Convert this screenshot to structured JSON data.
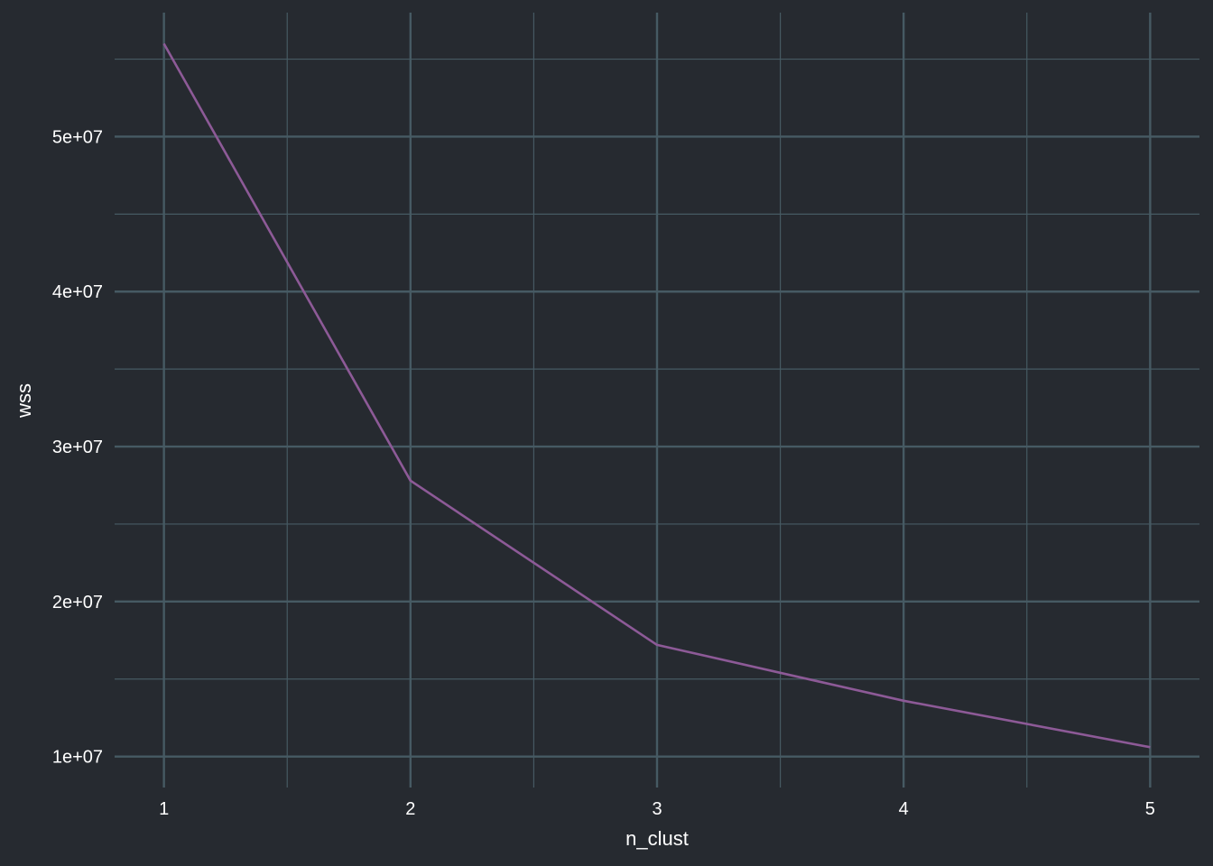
{
  "chart_data": {
    "type": "line",
    "x": [
      1,
      2,
      3,
      4,
      5
    ],
    "series": [
      {
        "values": [
          56000000,
          27800000,
          17200000,
          13600000,
          10600000
        ]
      }
    ],
    "xlabel": "n_clust",
    "ylabel": "wss",
    "x_ticks": [
      1,
      2,
      3,
      4,
      5
    ],
    "x_tick_labels": [
      "1",
      "2",
      "3",
      "4",
      "5"
    ],
    "y_ticks": [
      10000000,
      20000000,
      30000000,
      40000000,
      50000000
    ],
    "y_tick_labels": [
      "1e+07",
      "2e+07",
      "3e+07",
      "4e+07",
      "5e+07"
    ],
    "xlim": [
      0.8,
      5.2
    ],
    "ylim": [
      8000000,
      58000000
    ],
    "grid": true,
    "colors": {
      "background": "#262a30",
      "grid": "#465a63",
      "line": "#8d5a97",
      "text": "#ffffff"
    }
  }
}
